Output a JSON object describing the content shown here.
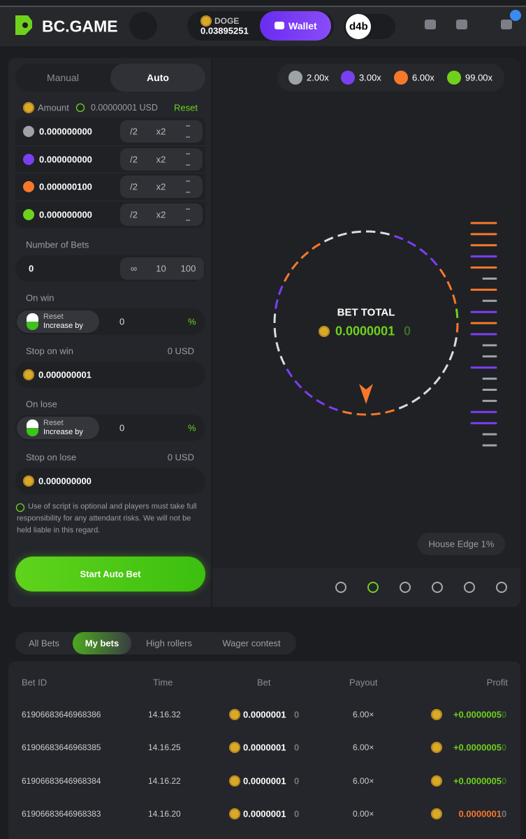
{
  "header": {
    "logo": "BC.GAME",
    "currency": "DOGE",
    "balance": "0.03895251",
    "wallet": "Wallet",
    "avatar": "d4b"
  },
  "bet_panel": {
    "tabs": [
      "Manual",
      "Auto"
    ],
    "active_tab": 1,
    "amount_label": "Amount",
    "amount_usd": "0.00000001 USD",
    "reset": "Reset",
    "bets": [
      {
        "value": "0.000000000",
        "color": "#9ea3a8"
      },
      {
        "value": "0.000000000",
        "color": "#7b3ff2"
      },
      {
        "value": "0.000000100",
        "color": "#f7782a"
      },
      {
        "value": "0.000000000",
        "color": "#6fd11c"
      }
    ],
    "half": "/2",
    "double": "x2",
    "number_of_bets": {
      "label": "Number of Bets",
      "value": "0",
      "options": [
        "∞",
        "10",
        "100"
      ]
    },
    "on_win": {
      "label": "On win",
      "reset": "Reset",
      "increase": "Increase by",
      "value": "0",
      "unit": "%"
    },
    "stop_on_win": {
      "label": "Stop on win",
      "usd": "0 USD",
      "value": "0.000000001"
    },
    "on_lose": {
      "label": "On lose",
      "reset": "Reset",
      "increase": "Increase by",
      "value": "0",
      "unit": "%"
    },
    "stop_on_lose": {
      "label": "Stop on lose",
      "usd": "0 USD",
      "value": "0.000000000"
    },
    "disclaimer": "Use of script is optional and players must take full responsibility for any attendant risks. We will not be held liable in this regard.",
    "start": "Start Auto Bet"
  },
  "game": {
    "multipliers": [
      {
        "label": "2.00x",
        "color": "#9ea3a8"
      },
      {
        "label": "3.00x",
        "color": "#7b3ff2"
      },
      {
        "label": "6.00x",
        "color": "#f7782a"
      },
      {
        "label": "99.00x",
        "color": "#6fd11c"
      }
    ],
    "bet_total_label": "BET TOTAL",
    "bet_total": "0.0000001",
    "bet_total_trail": "0",
    "house_edge": "House Edge 1%"
  },
  "bets_table": {
    "tabs": [
      "All Bets",
      "My bets",
      "High rollers",
      "Wager contest"
    ],
    "active_tab": 1,
    "headers": [
      "Bet ID",
      "Time",
      "Bet",
      "Payout",
      "Profit"
    ],
    "rows": [
      {
        "id": "61906683646968386",
        "time": "14.16.32",
        "bet": "0.0000001",
        "bet_trail": "0",
        "payout": "6.00×",
        "profit": "+0.0000005",
        "profit_trail": "0",
        "win": true
      },
      {
        "id": "61906683646968385",
        "time": "14.16.25",
        "bet": "0.0000001",
        "bet_trail": "0",
        "payout": "6.00×",
        "profit": "+0.0000005",
        "profit_trail": "0",
        "win": true
      },
      {
        "id": "61906683646968384",
        "time": "14.16.22",
        "bet": "0.0000001",
        "bet_trail": "0",
        "payout": "6.00×",
        "profit": "+0.0000005",
        "profit_trail": "0",
        "win": true
      },
      {
        "id": "61906683646968383",
        "time": "14.16.20",
        "bet": "0.0000001",
        "bet_trail": "0",
        "payout": "0.00×",
        "profit": "0.0000001",
        "profit_trail": "0",
        "win": false
      }
    ]
  }
}
